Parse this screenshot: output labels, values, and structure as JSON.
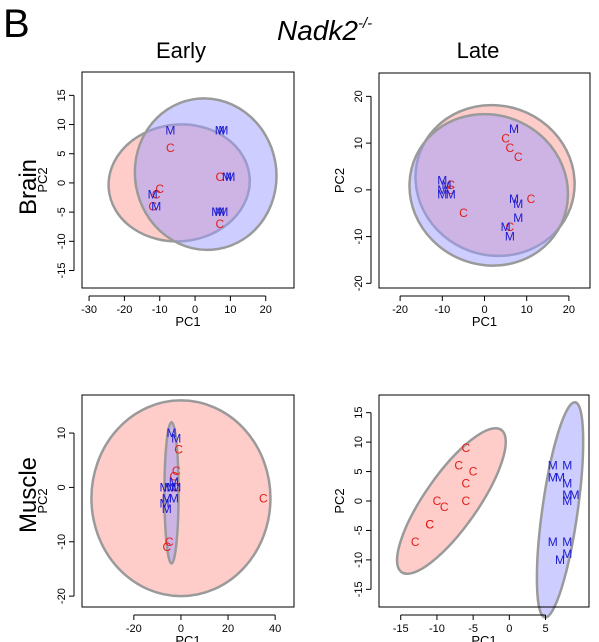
{
  "figure": {
    "panel_letter": "B",
    "title_main": "Nadk2",
    "title_sup": "-/-",
    "col_titles": [
      "Early",
      "Late"
    ],
    "row_titles": [
      "Brain",
      "Muscle"
    ],
    "colors": {
      "C_text": "#e0201a",
      "M_text": "#1a1ad0",
      "C_fill": "#ff9c94",
      "M_fill": "#9c9cff",
      "ellipse_stroke": "#9a9a9a"
    }
  },
  "chart_data": [
    {
      "type": "scatter",
      "title": "",
      "xlabel": "PC1",
      "ylabel": "PC2",
      "xlim": [
        -32,
        28
      ],
      "ylim": [
        -18,
        19
      ],
      "xticks": [
        -30,
        -20,
        -10,
        0,
        10,
        20
      ],
      "yticks": [
        -15,
        -10,
        -5,
        0,
        5,
        10,
        15
      ],
      "series": [
        {
          "name": "C",
          "color": "#e0201a",
          "points": [
            [
              -7,
              6
            ],
            [
              -10,
              -1
            ],
            [
              -11,
              -2
            ],
            [
              -12,
              -4
            ],
            [
              7,
              1
            ],
            [
              7,
              -7
            ]
          ]
        },
        {
          "name": "M",
          "color": "#1a1ad0",
          "points": [
            [
              -7,
              9
            ],
            [
              7,
              9
            ],
            [
              8,
              9
            ],
            [
              -12,
              -2
            ],
            [
              -11,
              -4
            ],
            [
              9,
              1
            ],
            [
              10,
              1
            ],
            [
              6,
              -5
            ],
            [
              7,
              -5
            ],
            [
              8,
              -5
            ]
          ]
        }
      ],
      "ellipses": [
        {
          "group": "C",
          "center": [
            -4.5,
            0
          ],
          "radii": [
            20,
            10
          ],
          "rotation_deg": 5
        },
        {
          "group": "M",
          "center": [
            3,
            1.5
          ],
          "radii": [
            20,
            13
          ],
          "rotation_deg": 10
        }
      ]
    },
    {
      "type": "scatter",
      "title": "",
      "xlabel": "PC1",
      "ylabel": "PC2",
      "xlim": [
        -25,
        25
      ],
      "ylim": [
        -21,
        25
      ],
      "xticks": [
        -20,
        -10,
        0,
        10,
        20
      ],
      "yticks": [
        -20,
        -10,
        0,
        10,
        20
      ],
      "series": [
        {
          "name": "C",
          "color": "#e0201a",
          "points": [
            [
              5,
              11
            ],
            [
              6,
              9
            ],
            [
              8,
              7
            ],
            [
              -8,
              1
            ],
            [
              -8,
              0
            ],
            [
              -5,
              -5
            ],
            [
              11,
              -2
            ],
            [
              6,
              -8
            ]
          ]
        },
        {
          "name": "M",
          "color": "#1a1ad0",
          "points": [
            [
              7,
              13
            ],
            [
              -10,
              2
            ],
            [
              -10,
              0
            ],
            [
              -9,
              1
            ],
            [
              -8,
              -1
            ],
            [
              -10,
              -1
            ],
            [
              7,
              -2
            ],
            [
              8,
              -3
            ],
            [
              8,
              -6
            ],
            [
              5,
              -8
            ],
            [
              6,
              -10
            ]
          ]
        }
      ],
      "ellipses": [
        {
          "group": "C",
          "center": [
            2.5,
            2
          ],
          "radii": [
            19,
            16
          ],
          "rotation_deg": -20
        },
        {
          "group": "M",
          "center": [
            1,
            0
          ],
          "radii": [
            19,
            16
          ],
          "rotation_deg": -25
        }
      ]
    },
    {
      "type": "scatter",
      "title": "",
      "xlabel": "PC1",
      "ylabel": "PC2",
      "xlim": [
        -42,
        48
      ],
      "ylim": [
        -22,
        17
      ],
      "xticks": [
        -20,
        0,
        20,
        40
      ],
      "yticks": [
        -20,
        -10,
        0,
        10
      ],
      "series": [
        {
          "name": "C",
          "color": "#e0201a",
          "points": [
            [
              -1,
              7
            ],
            [
              -2,
              3
            ],
            [
              -3,
              2
            ],
            [
              -2,
              0
            ],
            [
              35,
              -2
            ],
            [
              -5,
              -10
            ],
            [
              -6,
              -11
            ]
          ]
        },
        {
          "name": "M",
          "color": "#1a1ad0",
          "points": [
            [
              -4,
              10
            ],
            [
              -2,
              9
            ],
            [
              -3,
              1
            ],
            [
              -4,
              0
            ],
            [
              -2,
              0
            ],
            [
              -7,
              0
            ],
            [
              -5,
              0
            ],
            [
              -6,
              -2
            ],
            [
              -3,
              -2
            ],
            [
              -7,
              -3
            ],
            [
              -6,
              -4
            ]
          ]
        }
      ],
      "ellipses": [
        {
          "group": "C",
          "center": [
            0,
            -2
          ],
          "radii": [
            38,
            18
          ],
          "rotation_deg": 0
        },
        {
          "group": "M",
          "center": [
            -4,
            -1
          ],
          "radii": [
            3,
            13
          ],
          "rotation_deg": 0
        }
      ]
    },
    {
      "type": "scatter",
      "title": "",
      "xlabel": "PC1",
      "ylabel": "PC2",
      "xlim": [
        -18,
        11
      ],
      "ylim": [
        -18,
        18
      ],
      "xticks": [
        -15,
        -10,
        -5,
        0,
        5
      ],
      "yticks": [
        -15,
        -10,
        -5,
        0,
        5,
        10,
        15
      ],
      "series": [
        {
          "name": "C",
          "color": "#e0201a",
          "points": [
            [
              -6,
              9
            ],
            [
              -7,
              6
            ],
            [
              -5,
              5
            ],
            [
              -6,
              3
            ],
            [
              -10,
              0
            ],
            [
              -9,
              -1
            ],
            [
              -6,
              0
            ],
            [
              -11,
              -4
            ],
            [
              -11,
              -4
            ],
            [
              -13,
              -7
            ]
          ]
        },
        {
          "name": "M",
          "color": "#1a1ad0",
          "points": [
            [
              6,
              6
            ],
            [
              8,
              6
            ],
            [
              7,
              4
            ],
            [
              6,
              4
            ],
            [
              8,
              3
            ],
            [
              8,
              1
            ],
            [
              9,
              1
            ],
            [
              8,
              0
            ],
            [
              6,
              -7
            ],
            [
              8,
              -7
            ],
            [
              8,
              -9
            ],
            [
              7,
              -10
            ]
          ]
        }
      ],
      "ellipses": [
        {
          "group": "C",
          "center": [
            -8,
            0
          ],
          "radii": [
            12,
            4.5
          ],
          "rotation_deg": 55
        },
        {
          "group": "M",
          "center": [
            7,
            -1.5
          ],
          "radii": [
            15,
            3
          ],
          "rotation_deg": 82
        }
      ]
    }
  ]
}
